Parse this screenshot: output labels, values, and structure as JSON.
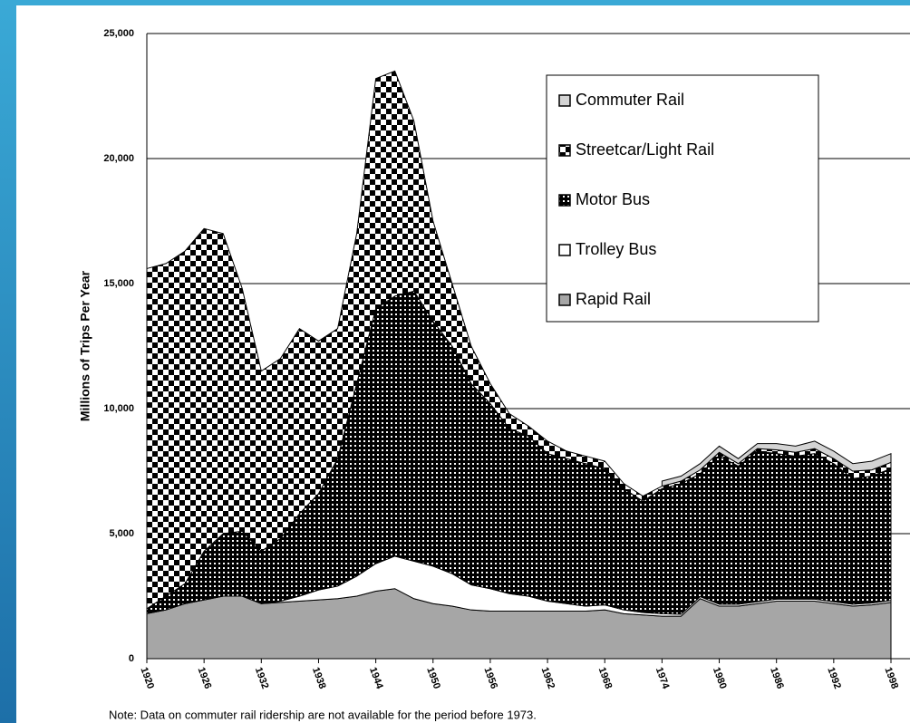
{
  "chart_data": {
    "type": "stacked_area",
    "y_label": "Millions of Trips Per Year",
    "note": "Note:   Data on commuter rail ridership are not available for the period before 1973.",
    "x": [
      1920,
      1922,
      1924,
      1926,
      1928,
      1930,
      1932,
      1934,
      1936,
      1938,
      1940,
      1942,
      1944,
      1946,
      1948,
      1950,
      1952,
      1954,
      1956,
      1958,
      1960,
      1962,
      1964,
      1966,
      1968,
      1970,
      1972,
      1974,
      1976,
      1978,
      1980,
      1982,
      1984,
      1986,
      1988,
      1990,
      1992,
      1994,
      1996,
      1998
    ],
    "xlim": [
      1920,
      1998
    ],
    "xticks": [
      1920,
      1926,
      1932,
      1938,
      1944,
      1950,
      1956,
      1962,
      1968,
      1974,
      1980,
      1986,
      1992,
      1998
    ],
    "ylim": [
      0,
      25000
    ],
    "yticks": [
      0,
      {
        "value": 5000,
        "label": "5,000"
      },
      {
        "value": 10000,
        "label": "10,000"
      },
      {
        "value": 15000,
        "label": "15,000"
      },
      {
        "value": 20000,
        "label": "20,000"
      },
      {
        "value": 25000,
        "label": "25,000"
      }
    ],
    "grid": true,
    "legend": "upper right",
    "series": [
      {
        "name": "Rapid Rail",
        "color": "#a6a6a6",
        "pattern": "solid",
        "values": [
          1800,
          1950,
          2200,
          2350,
          2500,
          2500,
          2200,
          2250,
          2300,
          2350,
          2400,
          2500,
          2700,
          2800,
          2400,
          2200,
          2100,
          1950,
          1900,
          1900,
          1900,
          1900,
          1900,
          1900,
          1950,
          1800,
          1750,
          1700,
          1700,
          2400,
          2100,
          2100,
          2200,
          2300,
          2300,
          2300,
          2200,
          2100,
          2150,
          2250
        ]
      },
      {
        "name": "Trolley Bus",
        "color": "#ffffff",
        "pattern": "solid",
        "values": [
          0,
          0,
          0,
          0,
          0,
          0,
          0,
          50,
          200,
          400,
          500,
          800,
          1100,
          1300,
          1500,
          1500,
          1300,
          1000,
          900,
          700,
          600,
          400,
          300,
          200,
          200,
          150,
          100,
          100,
          80,
          80,
          80,
          80,
          80,
          80,
          80,
          80,
          80,
          80,
          80,
          80
        ]
      },
      {
        "name": "Motor Bus",
        "color": "#000000",
        "pattern": "dots",
        "values": [
          200,
          550,
          800,
          1950,
          2500,
          2600,
          2100,
          2500,
          3300,
          3850,
          5100,
          7700,
          10200,
          10400,
          10800,
          9800,
          9100,
          8050,
          7400,
          6600,
          6400,
          5900,
          5800,
          5700,
          5450,
          4850,
          4450,
          5000,
          5220,
          4920,
          5920,
          5520,
          6020,
          5820,
          5720,
          5820,
          5520,
          5020,
          5070,
          5270
        ]
      },
      {
        "name": "Streetcar/Light Rail",
        "color": "#000000",
        "pattern": "checker",
        "values": [
          13600,
          13300,
          13300,
          12900,
          12000,
          9700,
          7200,
          7200,
          7400,
          6100,
          5200,
          6000,
          9200,
          9000,
          6800,
          4000,
          2500,
          1500,
          800,
          600,
          400,
          500,
          300,
          300,
          300,
          200,
          200,
          100,
          100,
          150,
          150,
          100,
          100,
          150,
          150,
          200,
          200,
          300,
          250,
          250
        ]
      },
      {
        "name": "Commuter Rail",
        "color": "#d4d4d4",
        "pattern": "solid",
        "values": [
          null,
          null,
          null,
          null,
          null,
          null,
          null,
          null,
          null,
          null,
          null,
          null,
          null,
          null,
          null,
          null,
          null,
          null,
          null,
          null,
          null,
          null,
          null,
          null,
          null,
          null,
          null,
          200,
          200,
          250,
          250,
          200,
          200,
          250,
          250,
          300,
          300,
          300,
          350,
          350
        ]
      }
    ]
  }
}
